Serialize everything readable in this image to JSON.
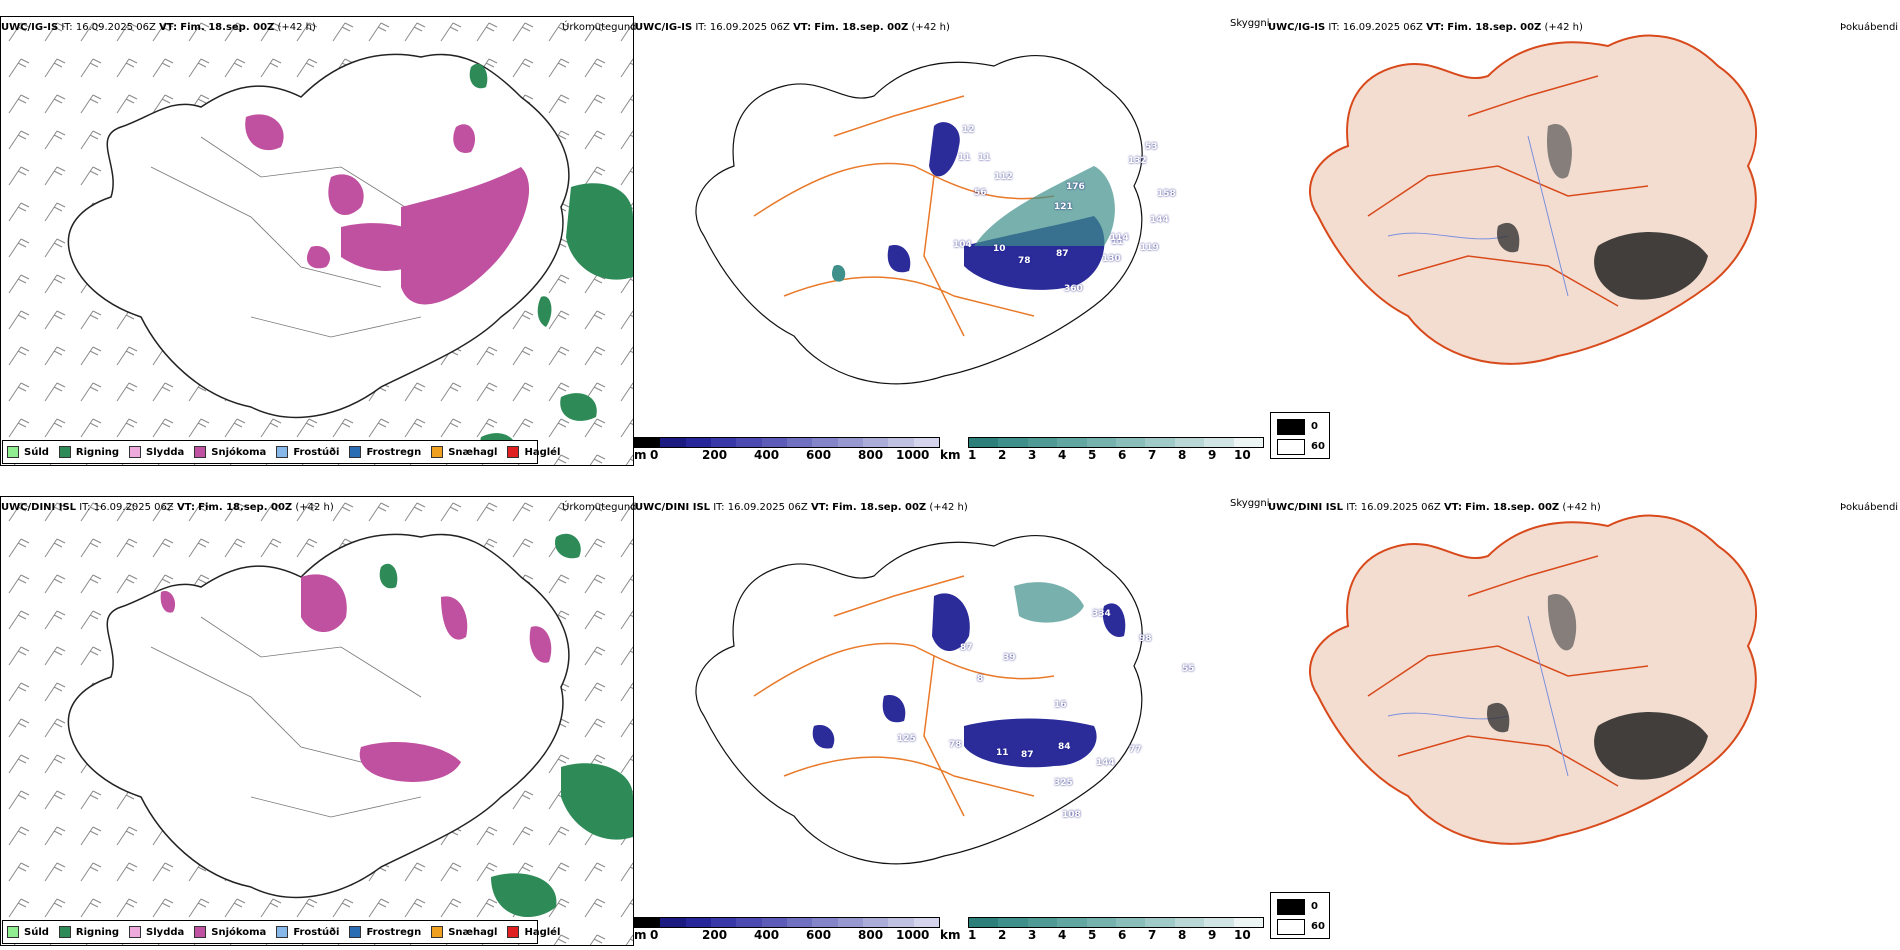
{
  "rows": [
    {
      "model": "UWC/IG-IS",
      "it_label": "IT:",
      "it_value": "16.09.2025 06Z",
      "vt_label": "VT:",
      "vt_value": "Fim. 18.sep. 00Z",
      "lead": "(+42 h)"
    },
    {
      "model": "UWC/DINI ISL",
      "it_label": "IT:",
      "it_value": "16.09.2025 06Z",
      "vt_label": "VT:",
      "vt_value": "Fim. 18.sep. 00Z",
      "lead": "(+42 h)"
    }
  ],
  "panels": {
    "precip_title": "Úrkomutegund",
    "cloud_title": "Skyggni",
    "fog_title": "Þokuábendi"
  },
  "precip_legend": [
    {
      "label": "Súld",
      "color": "#90ee90"
    },
    {
      "label": "Rigning",
      "color": "#2e8b57"
    },
    {
      "label": "Slydda",
      "color": "#eeaadd"
    },
    {
      "label": "Snjókoma",
      "color": "#c050a0"
    },
    {
      "label": "Frostúði",
      "color": "#87b7e8"
    },
    {
      "label": "Frostregn",
      "color": "#2a6db5"
    },
    {
      "label": "Snæhagl",
      "color": "#f0a020"
    },
    {
      "label": "Haglél",
      "color": "#e02020"
    }
  ],
  "ceiling_bar": {
    "unit": "m",
    "ticks": [
      "0",
      "200",
      "400",
      "600",
      "800",
      "1000"
    ],
    "colors": [
      "#000000",
      "#1a1a80",
      "#26269a",
      "#3838a8",
      "#4a4ab0",
      "#5c5cb8",
      "#7070c0",
      "#8484c8",
      "#9898d0",
      "#acacd8",
      "#c0c0e0",
      "#d4d4ec"
    ]
  },
  "visibility_bar": {
    "unit": "km",
    "ticks": [
      "1",
      "2",
      "3",
      "4",
      "5",
      "6",
      "7",
      "8",
      "9",
      "10"
    ],
    "colors": [
      "#2d7f7a",
      "#3f8f8a",
      "#4f9a95",
      "#61a6a1",
      "#75b2ad",
      "#8abeba",
      "#a0cac7",
      "#b8d7d5",
      "#d0e5e4",
      "#ecf4f4"
    ]
  },
  "fog_legend": [
    {
      "label": "0",
      "color": "#000000"
    },
    {
      "label": "60",
      "color": "#ffffff"
    }
  ],
  "cloud_labels_top": [
    "12",
    "11",
    "11",
    "112",
    "56",
    "176",
    "121",
    "132",
    "53",
    "158",
    "144",
    "11",
    "104",
    "10",
    "78",
    "87",
    "130",
    "114",
    "119",
    "360"
  ],
  "cloud_labels_bottom": [
    "334",
    "98",
    "87",
    "39",
    "8",
    "55",
    "125",
    "78",
    "11",
    "87",
    "84",
    "77",
    "144",
    "325",
    "16",
    "108"
  ]
}
